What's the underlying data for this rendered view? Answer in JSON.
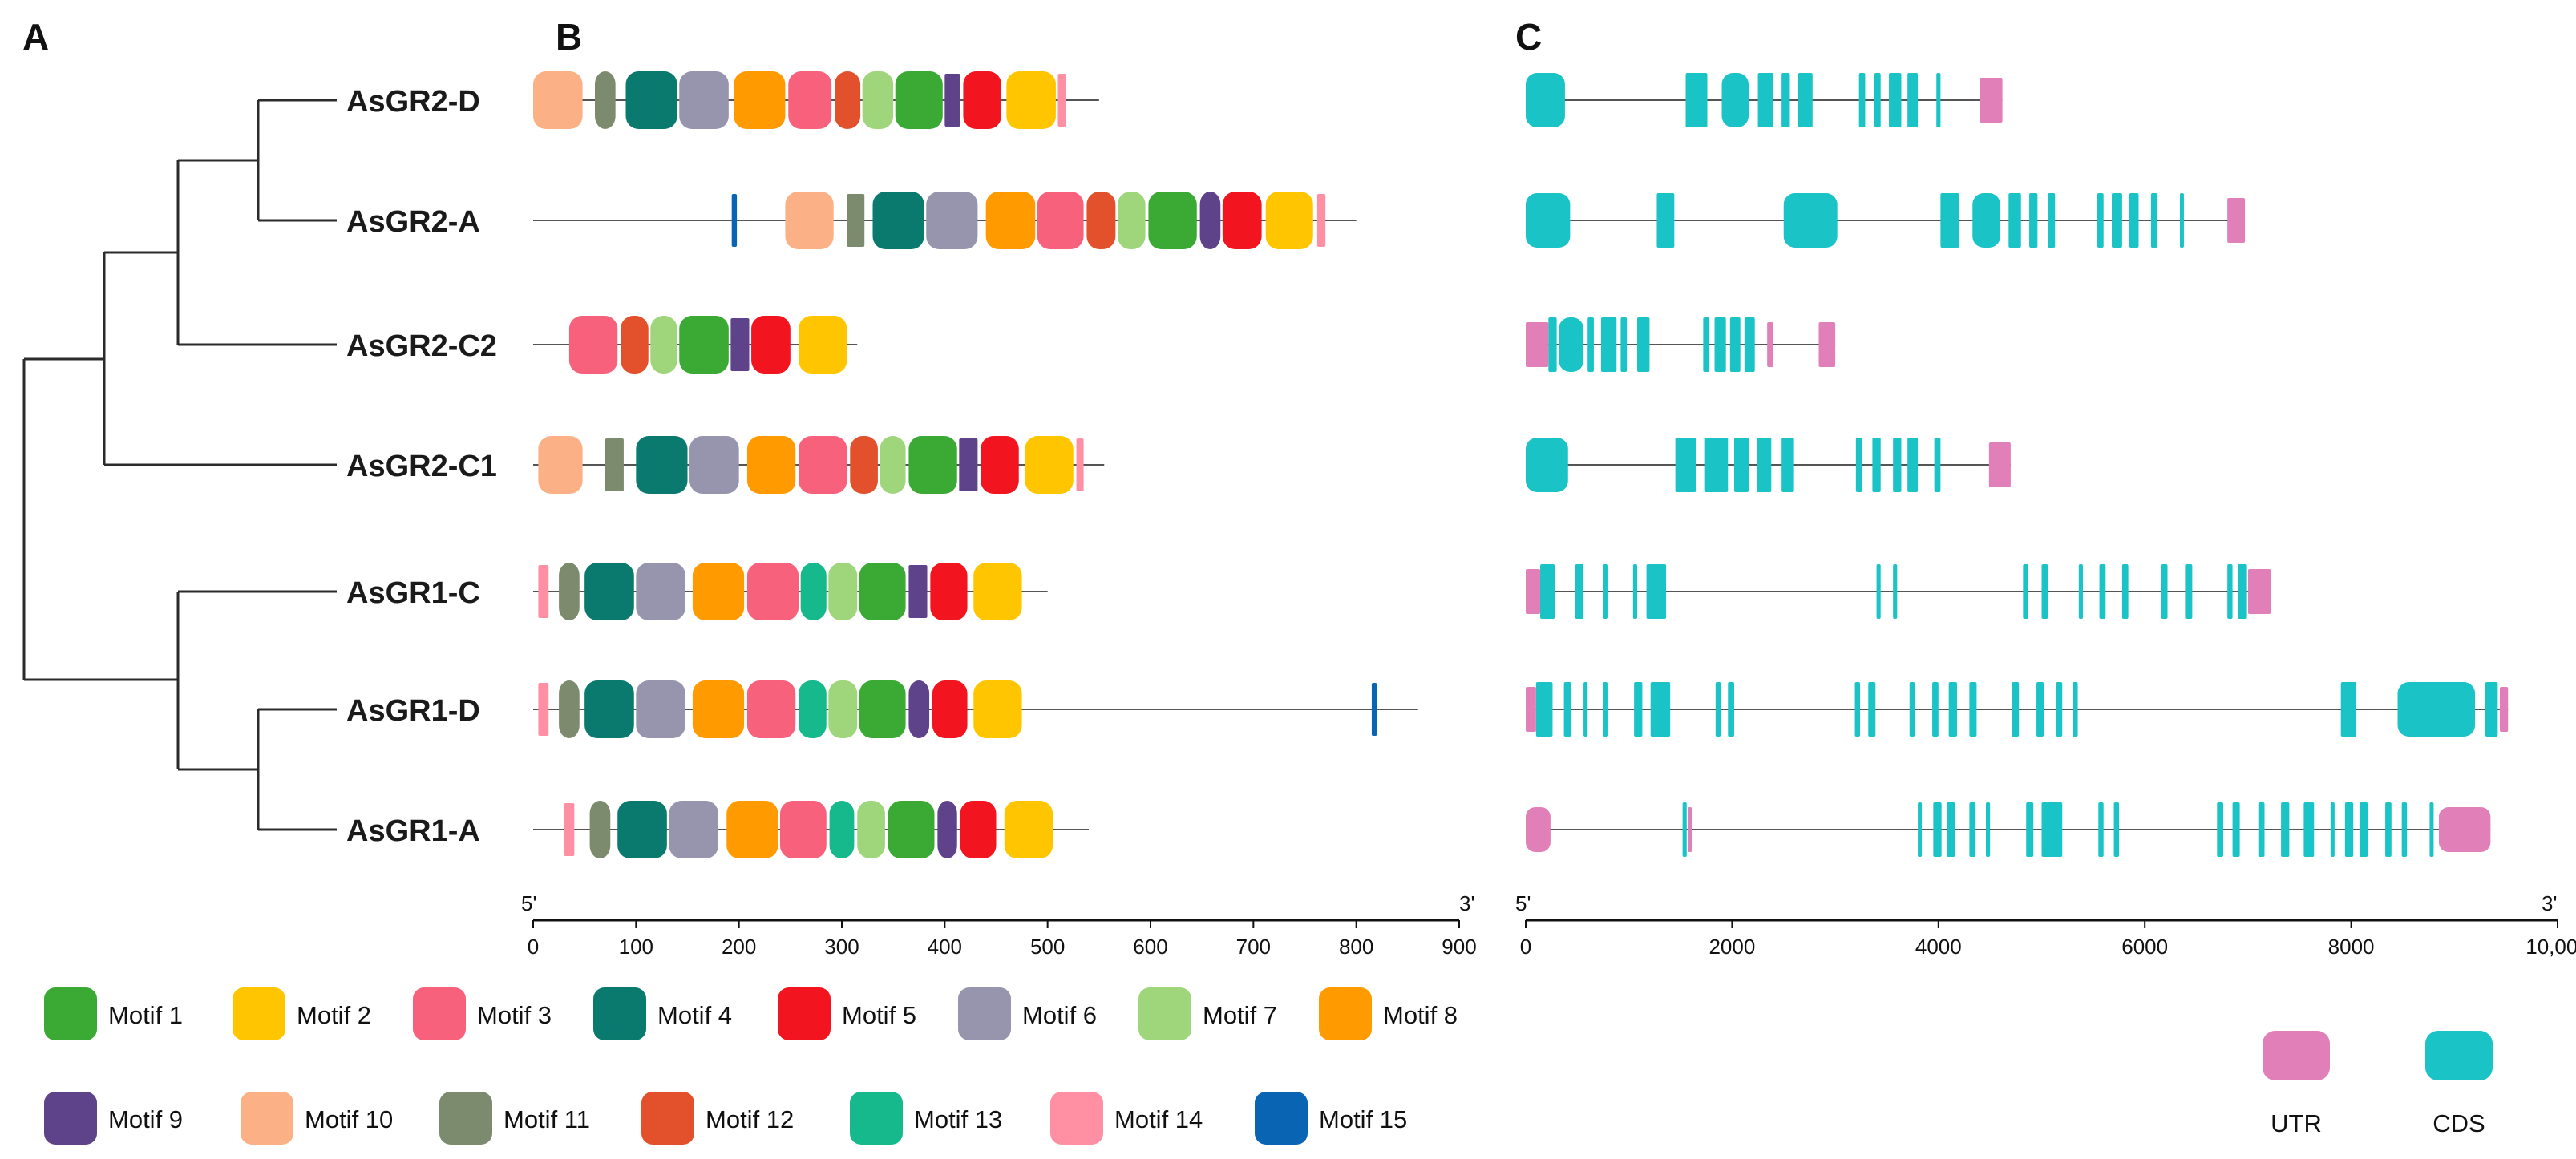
{
  "figure": {
    "panel_labels": [
      "A",
      "B",
      "C"
    ],
    "genes": [
      "AsGR2-D",
      "AsGR2-A",
      "AsGR2-C2",
      "AsGR2-C1",
      "AsGR1-C",
      "AsGR1-D",
      "AsGR1-A"
    ],
    "motif_axis": {
      "start_label": "5'",
      "end_label": "3'",
      "ticks": [
        0,
        100,
        200,
        300,
        400,
        500,
        600,
        700,
        800,
        900
      ],
      "tick_labels": [
        "0",
        "100",
        "200",
        "300",
        "400",
        "500",
        "600",
        "700",
        "800",
        "900"
      ],
      "max": 900
    },
    "structure_axis": {
      "start_label": "5'",
      "end_label": "3'",
      "ticks": [
        0,
        2000,
        4000,
        6000,
        8000,
        10000
      ],
      "tick_labels": [
        "0",
        "2000",
        "4000",
        "6000",
        "8000",
        "10,000"
      ],
      "max": 10000
    },
    "motif_legend": [
      {
        "label": "Motif 1",
        "color": "#3aaa35"
      },
      {
        "label": "Motif 2",
        "color": "#ffc600"
      },
      {
        "label": "Motif 3",
        "color": "#f8617c"
      },
      {
        "label": "Motif 4",
        "color": "#0b7a6e"
      },
      {
        "label": "Motif 5",
        "color": "#f2141f"
      },
      {
        "label": "Motif 6",
        "color": "#9794ae"
      },
      {
        "label": "Motif 7",
        "color": "#9fd67c"
      },
      {
        "label": "Motif 8",
        "color": "#ff9a00"
      },
      {
        "label": "Motif 9",
        "color": "#5e438a"
      },
      {
        "label": "Motif 10",
        "color": "#fcb086"
      },
      {
        "label": "Motif 11",
        "color": "#7c8b6e"
      },
      {
        "label": "Motif 12",
        "color": "#e2512c"
      },
      {
        "label": "Motif 13",
        "color": "#16b98c"
      },
      {
        "label": "Motif 14",
        "color": "#ff8fa3"
      },
      {
        "label": "Motif 15",
        "color": "#0a64b4"
      }
    ],
    "structure_legend": [
      {
        "label": "UTR",
        "color": "#e07fb8"
      },
      {
        "label": "CDS",
        "color": "#19c3c6"
      }
    ]
  },
  "chart_data": {
    "type": "gene-structure-diagram",
    "tree_order": [
      "AsGR2-D",
      "AsGR2-A",
      "AsGR2-C2",
      "AsGR2-C1",
      "AsGR1-C",
      "AsGR1-D",
      "AsGR1-A"
    ],
    "motifs": [
      {
        "gene": "AsGR2-D",
        "length": 550,
        "motifs": [
          [
            10,
            0,
            48
          ],
          [
            11,
            60,
            80
          ],
          [
            4,
            90,
            140
          ],
          [
            6,
            142,
            190
          ],
          [
            8,
            195,
            245
          ],
          [
            3,
            248,
            290
          ],
          [
            12,
            293,
            318
          ],
          [
            7,
            320,
            350
          ],
          [
            1,
            352,
            398
          ],
          [
            9,
            400,
            415
          ],
          [
            5,
            418,
            455
          ],
          [
            2,
            460,
            508
          ],
          [
            14,
            510,
            518
          ]
        ]
      },
      {
        "gene": "AsGR2-A",
        "length": 800,
        "motifs": [
          [
            15,
            193,
            198
          ],
          [
            10,
            245,
            292
          ],
          [
            11,
            305,
            322
          ],
          [
            4,
            330,
            380
          ],
          [
            6,
            382,
            432
          ],
          [
            8,
            440,
            488
          ],
          [
            3,
            490,
            535
          ],
          [
            12,
            538,
            566
          ],
          [
            7,
            568,
            595
          ],
          [
            1,
            598,
            645
          ],
          [
            9,
            648,
            668
          ],
          [
            5,
            670,
            708
          ],
          [
            2,
            712,
            758
          ],
          [
            14,
            762,
            770
          ]
        ]
      },
      {
        "gene": "AsGR2-C2",
        "length": 315,
        "motifs": [
          [
            3,
            35,
            82
          ],
          [
            12,
            85,
            112
          ],
          [
            7,
            114,
            140
          ],
          [
            1,
            142,
            190
          ],
          [
            9,
            192,
            210
          ],
          [
            5,
            212,
            250
          ],
          [
            2,
            258,
            305
          ]
        ]
      },
      {
        "gene": "AsGR2-C1",
        "length": 555,
        "motifs": [
          [
            10,
            5,
            48
          ],
          [
            11,
            70,
            88
          ],
          [
            4,
            100,
            150
          ],
          [
            6,
            152,
            200
          ],
          [
            8,
            208,
            255
          ],
          [
            3,
            258,
            305
          ],
          [
            12,
            308,
            335
          ],
          [
            7,
            337,
            362
          ],
          [
            1,
            365,
            412
          ],
          [
            9,
            414,
            432
          ],
          [
            5,
            435,
            472
          ],
          [
            2,
            478,
            525
          ],
          [
            14,
            528,
            535
          ]
        ]
      },
      {
        "gene": "AsGR1-C",
        "length": 500,
        "motifs": [
          [
            14,
            5,
            15
          ],
          [
            11,
            25,
            45
          ],
          [
            4,
            50,
            98
          ],
          [
            6,
            100,
            148
          ],
          [
            8,
            155,
            205
          ],
          [
            3,
            208,
            258
          ],
          [
            13,
            260,
            285
          ],
          [
            7,
            287,
            315
          ],
          [
            1,
            317,
            362
          ],
          [
            9,
            365,
            383
          ],
          [
            5,
            386,
            422
          ],
          [
            2,
            428,
            475
          ]
        ]
      },
      {
        "gene": "AsGR1-D",
        "length": 860,
        "motifs": [
          [
            14,
            5,
            15
          ],
          [
            11,
            25,
            45
          ],
          [
            4,
            50,
            98
          ],
          [
            6,
            100,
            148
          ],
          [
            8,
            155,
            205
          ],
          [
            3,
            208,
            255
          ],
          [
            13,
            258,
            285
          ],
          [
            7,
            287,
            315
          ],
          [
            1,
            317,
            362
          ],
          [
            9,
            365,
            385
          ],
          [
            5,
            388,
            422
          ],
          [
            2,
            428,
            475
          ],
          [
            15,
            815,
            820
          ]
        ]
      },
      {
        "gene": "AsGR1-A",
        "length": 540,
        "motifs": [
          [
            14,
            30,
            40
          ],
          [
            11,
            55,
            75
          ],
          [
            4,
            82,
            130
          ],
          [
            6,
            132,
            180
          ],
          [
            8,
            188,
            238
          ],
          [
            3,
            240,
            285
          ],
          [
            13,
            288,
            312
          ],
          [
            7,
            315,
            342
          ],
          [
            1,
            345,
            390
          ],
          [
            9,
            393,
            412
          ],
          [
            5,
            415,
            450
          ],
          [
            2,
            458,
            505
          ]
        ]
      }
    ],
    "structures": [
      {
        "gene": "AsGR2-D",
        "length": 4620,
        "cds": [
          [
            0,
            380
          ],
          [
            1550,
            1760
          ],
          [
            1900,
            2160
          ],
          [
            2250,
            2400
          ],
          [
            2480,
            2560
          ],
          [
            2640,
            2780
          ],
          [
            3230,
            3290
          ],
          [
            3380,
            3440
          ],
          [
            3520,
            3640
          ],
          [
            3700,
            3800
          ],
          [
            3980,
            4020
          ]
        ],
        "utr": [
          [
            4400,
            4620
          ]
        ]
      },
      {
        "gene": "AsGR2-A",
        "length": 6970,
        "cds": [
          [
            0,
            430
          ],
          [
            1270,
            1440
          ],
          [
            2500,
            3020
          ],
          [
            4020,
            4200
          ],
          [
            4330,
            4600
          ],
          [
            4680,
            4800
          ],
          [
            4880,
            4960
          ],
          [
            5060,
            5130
          ],
          [
            5540,
            5600
          ],
          [
            5680,
            5780
          ],
          [
            5850,
            5940
          ],
          [
            6060,
            6120
          ],
          [
            6340,
            6370
          ]
        ],
        "utr": [
          [
            6800,
            6970
          ]
        ]
      },
      {
        "gene": "AsGR2-C2",
        "length": 3000,
        "cds": [
          [
            220,
            300
          ],
          [
            320,
            560
          ],
          [
            600,
            660
          ],
          [
            730,
            880
          ],
          [
            920,
            980
          ],
          [
            1080,
            1200
          ],
          [
            1720,
            1780
          ],
          [
            1830,
            1940
          ],
          [
            1980,
            2080
          ],
          [
            2120,
            2220
          ]
        ],
        "utr": [
          [
            0,
            220
          ],
          [
            2340,
            2400
          ],
          [
            2840,
            3000
          ]
        ]
      },
      {
        "gene": "AsGR2-C1",
        "length": 4700,
        "cds": [
          [
            0,
            410
          ],
          [
            1450,
            1650
          ],
          [
            1730,
            1960
          ],
          [
            2020,
            2160
          ],
          [
            2240,
            2380
          ],
          [
            2480,
            2600
          ],
          [
            3200,
            3260
          ],
          [
            3360,
            3440
          ],
          [
            3560,
            3640
          ],
          [
            3700,
            3800
          ],
          [
            3960,
            4020
          ]
        ],
        "utr": [
          [
            4490,
            4700
          ]
        ]
      },
      {
        "gene": "AsGR1-C",
        "length": 7220,
        "cds": [
          [
            140,
            280
          ],
          [
            480,
            560
          ],
          [
            750,
            800
          ],
          [
            1040,
            1080
          ],
          [
            1170,
            1360
          ],
          [
            3400,
            3440
          ],
          [
            3560,
            3600
          ],
          [
            4820,
            4870
          ],
          [
            5000,
            5060
          ],
          [
            5360,
            5400
          ],
          [
            5560,
            5620
          ],
          [
            5780,
            5840
          ],
          [
            6160,
            6220
          ],
          [
            6390,
            6460
          ],
          [
            6800,
            6850
          ],
          [
            6900,
            6990
          ]
        ],
        "utr": [
          [
            0,
            140
          ],
          [
            7000,
            7220
          ]
        ]
      },
      {
        "gene": "AsGR1-D",
        "length": 9520,
        "cds": [
          [
            100,
            260
          ],
          [
            370,
            440
          ],
          [
            560,
            600
          ],
          [
            750,
            800
          ],
          [
            1050,
            1130
          ],
          [
            1210,
            1400
          ],
          [
            1840,
            1890
          ],
          [
            1960,
            2020
          ],
          [
            3190,
            3240
          ],
          [
            3320,
            3390
          ],
          [
            3720,
            3770
          ],
          [
            3940,
            4000
          ],
          [
            4100,
            4180
          ],
          [
            4300,
            4370
          ],
          [
            4710,
            4780
          ],
          [
            4950,
            5020
          ],
          [
            5140,
            5200
          ],
          [
            5300,
            5350
          ],
          [
            7900,
            8050
          ],
          [
            8450,
            9200
          ],
          [
            9300,
            9420
          ]
        ],
        "utr": [
          [
            0,
            100
          ],
          [
            9440,
            9520
          ]
        ]
      },
      {
        "gene": "AsGR1-A",
        "length": 9350,
        "cds": [
          [
            1520,
            1560
          ],
          [
            3800,
            3830
          ],
          [
            3950,
            4030
          ],
          [
            4080,
            4160
          ],
          [
            4300,
            4360
          ],
          [
            4460,
            4500
          ],
          [
            4850,
            4920
          ],
          [
            5000,
            5200
          ],
          [
            5550,
            5600
          ],
          [
            5700,
            5750
          ],
          [
            6700,
            6760
          ],
          [
            6850,
            6920
          ],
          [
            7100,
            7160
          ],
          [
            7320,
            7400
          ],
          [
            7540,
            7640
          ],
          [
            7800,
            7830
          ],
          [
            7940,
            8020
          ],
          [
            8080,
            8160
          ],
          [
            8330,
            8390
          ],
          [
            8490,
            8540
          ],
          [
            8760,
            8790
          ]
        ],
        "utr": [
          [
            0,
            240
          ],
          [
            1570,
            1610
          ],
          [
            8850,
            9350
          ]
        ]
      }
    ]
  }
}
